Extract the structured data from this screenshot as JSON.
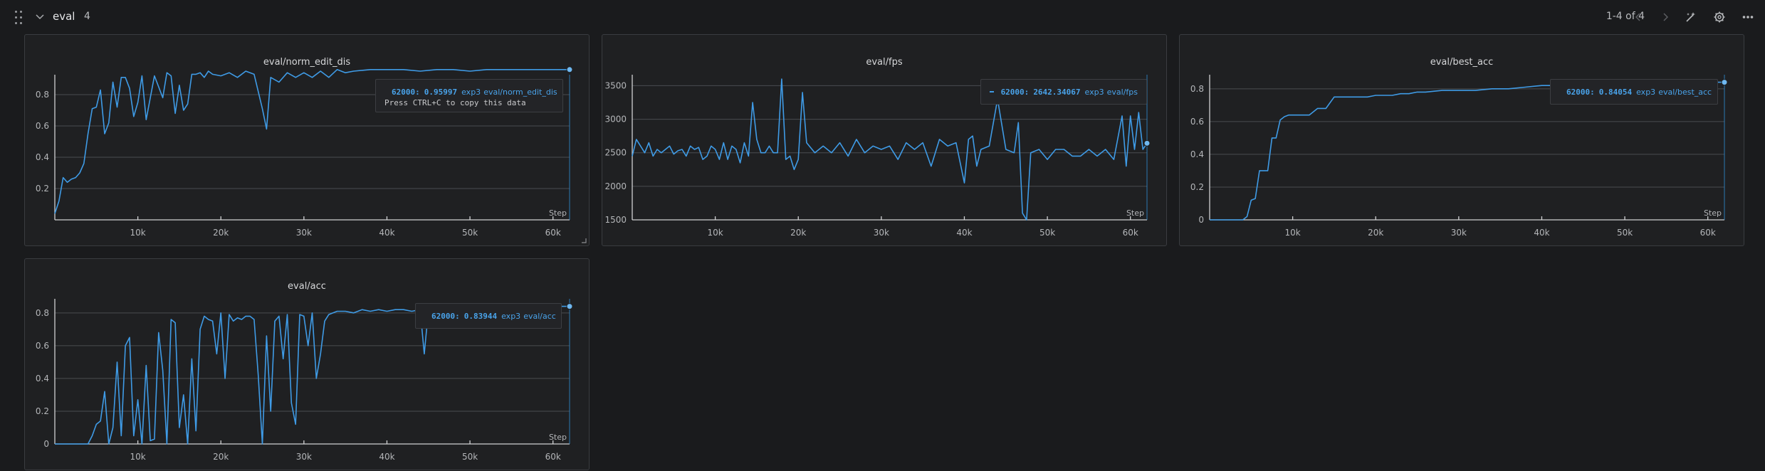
{
  "section": {
    "title": "eval",
    "count": "4",
    "pager": "1-4 of 4"
  },
  "icons": {
    "drag": "drag-handle-icon",
    "collapse": "chevron-down-icon",
    "prev": "chevron-left-icon",
    "next": "chevron-right-icon",
    "magic": "magic-wand-icon",
    "settings": "gear-icon",
    "more": "more-icon"
  },
  "colors": {
    "line": "#3f9be6",
    "legend_text": "#49a3ea",
    "background": "#1a1b1d",
    "panel": "#1f2022"
  },
  "panels": [
    {
      "title": "eval/norm_edit_dis",
      "legend": {
        "step": "62000:",
        "value": "0.95997",
        "run": "exp3",
        "metric": "eval/norm_edit_dis",
        "hint": "Press CTRL+C to copy this data"
      }
    },
    {
      "title": "eval/fps",
      "legend": {
        "step": "62000:",
        "value": "2642.34067",
        "run": "exp3",
        "metric": "eval/fps",
        "hint": ""
      }
    },
    {
      "title": "eval/best_acc",
      "legend": {
        "step": "62000:",
        "value": "0.84054",
        "run": "exp3",
        "metric": "eval/best_acc",
        "hint": ""
      }
    },
    {
      "title": "eval/acc",
      "legend": {
        "step": "62000:",
        "value": "0.83944",
        "run": "exp3",
        "metric": "eval/acc",
        "hint": ""
      }
    }
  ],
  "chart_data": [
    {
      "type": "line",
      "title": "eval/norm_edit_dis",
      "xlabel": "Step",
      "ylabel": "",
      "xlim": [
        0,
        62000
      ],
      "ylim": [
        0,
        0.9
      ],
      "xticks": [
        10000,
        20000,
        30000,
        40000,
        50000,
        60000
      ],
      "xtick_labels": [
        "10k",
        "20k",
        "30k",
        "40k",
        "50k",
        "60k"
      ],
      "yticks": [
        0.2,
        0.4,
        0.6,
        0.8
      ],
      "ytick_labels": [
        "0.2",
        "0.4",
        "0.6",
        "0.8"
      ],
      "grid": true,
      "series": [
        {
          "name": "exp3",
          "x": [
            0,
            500,
            1000,
            1500,
            2000,
            2500,
            3000,
            3500,
            4000,
            4500,
            5000,
            5500,
            6000,
            6500,
            7000,
            7500,
            8000,
            8500,
            9000,
            9500,
            10000,
            10500,
            11000,
            11500,
            12000,
            12500,
            13000,
            13500,
            14000,
            14500,
            15000,
            15500,
            16000,
            16500,
            17000,
            17500,
            18000,
            18500,
            19000,
            20000,
            21000,
            22000,
            23000,
            24000,
            25000,
            25500,
            26000,
            27000,
            28000,
            29000,
            30000,
            31000,
            32000,
            33000,
            34000,
            35000,
            36000,
            38000,
            40000,
            42000,
            44000,
            46000,
            48000,
            50000,
            52000,
            54000,
            56000,
            58000,
            60000,
            62000
          ],
          "y": [
            0.04,
            0.12,
            0.27,
            0.24,
            0.26,
            0.27,
            0.3,
            0.36,
            0.55,
            0.71,
            0.72,
            0.83,
            0.55,
            0.62,
            0.88,
            0.72,
            0.91,
            0.91,
            0.84,
            0.66,
            0.75,
            0.92,
            0.64,
            0.78,
            0.92,
            0.85,
            0.78,
            0.94,
            0.92,
            0.68,
            0.86,
            0.7,
            0.74,
            0.93,
            0.93,
            0.94,
            0.91,
            0.95,
            0.93,
            0.92,
            0.94,
            0.91,
            0.95,
            0.93,
            0.71,
            0.58,
            0.91,
            0.88,
            0.94,
            0.91,
            0.94,
            0.91,
            0.95,
            0.91,
            0.96,
            0.94,
            0.95,
            0.96,
            0.96,
            0.96,
            0.95,
            0.96,
            0.96,
            0.95,
            0.96,
            0.96,
            0.96,
            0.96,
            0.96,
            0.96
          ]
        }
      ]
    },
    {
      "type": "line",
      "title": "eval/fps",
      "xlabel": "Step",
      "ylabel": "",
      "xlim": [
        0,
        62000
      ],
      "ylim": [
        1500,
        3600
      ],
      "xticks": [
        10000,
        20000,
        30000,
        40000,
        50000,
        60000
      ],
      "xtick_labels": [
        "10k",
        "20k",
        "30k",
        "40k",
        "50k",
        "60k"
      ],
      "yticks": [
        1500,
        2000,
        2500,
        3000,
        3500
      ],
      "ytick_labels": [
        "1500",
        "2000",
        "2500",
        "3000",
        "3500"
      ],
      "grid": true,
      "series": [
        {
          "name": "exp3",
          "x": [
            0,
            500,
            1000,
            1500,
            2000,
            2500,
            3000,
            3500,
            4000,
            4500,
            5000,
            5500,
            6000,
            6500,
            7000,
            7500,
            8000,
            8500,
            9000,
            9500,
            10000,
            10500,
            11000,
            11500,
            12000,
            12500,
            13000,
            13500,
            14000,
            14500,
            15000,
            15500,
            16000,
            16500,
            17000,
            17500,
            18000,
            18500,
            19000,
            19500,
            20000,
            20500,
            21000,
            22000,
            23000,
            24000,
            25000,
            26000,
            27000,
            28000,
            29000,
            30000,
            31000,
            32000,
            33000,
            34000,
            35000,
            36000,
            37000,
            38000,
            39000,
            40000,
            40500,
            41000,
            41500,
            42000,
            43000,
            44000,
            45000,
            46000,
            46500,
            47000,
            47500,
            48000,
            49000,
            50000,
            51000,
            52000,
            53000,
            54000,
            55000,
            56000,
            57000,
            58000,
            59000,
            59500,
            60000,
            60500,
            61000,
            61500,
            62000
          ],
          "y": [
            2450,
            2700,
            2600,
            2500,
            2650,
            2450,
            2550,
            2500,
            2550,
            2600,
            2480,
            2530,
            2550,
            2450,
            2600,
            2550,
            2580,
            2400,
            2450,
            2600,
            2550,
            2400,
            2650,
            2400,
            2600,
            2550,
            2350,
            2650,
            2450,
            3250,
            2700,
            2500,
            2500,
            2600,
            2500,
            2500,
            3600,
            2400,
            2450,
            2250,
            2400,
            3400,
            2650,
            2500,
            2600,
            2500,
            2650,
            2450,
            2700,
            2500,
            2600,
            2550,
            2600,
            2400,
            2650,
            2550,
            2650,
            2300,
            2700,
            2600,
            2650,
            2050,
            2700,
            2750,
            2300,
            2550,
            2600,
            3300,
            2550,
            2500,
            2950,
            1600,
            1500,
            2500,
            2550,
            2400,
            2550,
            2550,
            2450,
            2450,
            2550,
            2450,
            2550,
            2400,
            3050,
            2300,
            3050,
            2550,
            3100,
            2550,
            2642
          ]
        }
      ]
    },
    {
      "type": "line",
      "title": "eval/best_acc",
      "xlabel": "Step",
      "ylabel": "",
      "xlim": [
        0,
        62000
      ],
      "ylim": [
        0,
        0.86
      ],
      "xticks": [
        10000,
        20000,
        30000,
        40000,
        50000,
        60000
      ],
      "xtick_labels": [
        "10k",
        "20k",
        "30k",
        "40k",
        "50k",
        "60k"
      ],
      "yticks": [
        0,
        0.2,
        0.4,
        0.6,
        0.8
      ],
      "ytick_labels": [
        "0",
        "0.2",
        "0.4",
        "0.6",
        "0.8"
      ],
      "grid": true,
      "series": [
        {
          "name": "exp3",
          "x": [
            0,
            4000,
            4500,
            5000,
            5500,
            6000,
            6500,
            7000,
            7500,
            8000,
            8500,
            9000,
            9500,
            10000,
            12000,
            13000,
            14000,
            15000,
            16000,
            17000,
            18000,
            19000,
            20000,
            21000,
            22000,
            23000,
            24000,
            25000,
            26000,
            28000,
            30000,
            32000,
            34000,
            36000,
            38000,
            40000,
            42000,
            44000,
            46000,
            48000,
            50000,
            52000,
            54000,
            56000,
            58000,
            60000,
            62000
          ],
          "y": [
            0,
            0,
            0.02,
            0.12,
            0.13,
            0.3,
            0.3,
            0.3,
            0.5,
            0.5,
            0.61,
            0.63,
            0.64,
            0.64,
            0.64,
            0.68,
            0.68,
            0.75,
            0.75,
            0.75,
            0.75,
            0.75,
            0.76,
            0.76,
            0.76,
            0.77,
            0.77,
            0.78,
            0.78,
            0.79,
            0.79,
            0.79,
            0.8,
            0.8,
            0.81,
            0.82,
            0.82,
            0.82,
            0.83,
            0.83,
            0.83,
            0.83,
            0.83,
            0.84,
            0.84,
            0.84,
            0.84
          ]
        }
      ]
    },
    {
      "type": "line",
      "title": "eval/acc",
      "xlabel": "Step",
      "ylabel": "",
      "xlim": [
        0,
        62000
      ],
      "ylim": [
        0,
        0.86
      ],
      "xticks": [
        10000,
        20000,
        30000,
        40000,
        50000,
        60000
      ],
      "xtick_labels": [
        "10k",
        "20k",
        "30k",
        "40k",
        "50k",
        "60k"
      ],
      "yticks": [
        0,
        0.2,
        0.4,
        0.6,
        0.8
      ],
      "ytick_labels": [
        "0",
        "0.2",
        "0.4",
        "0.6",
        "0.8"
      ],
      "grid": true,
      "series": [
        {
          "name": "exp3",
          "x": [
            0,
            4000,
            4500,
            5000,
            5500,
            6000,
            6500,
            7000,
            7500,
            8000,
            8500,
            9000,
            9500,
            10000,
            10500,
            11000,
            11500,
            12000,
            12500,
            13000,
            13500,
            14000,
            14500,
            15000,
            15500,
            16000,
            16500,
            17000,
            17500,
            18000,
            18500,
            19000,
            19500,
            20000,
            20500,
            21000,
            21500,
            22000,
            22500,
            23000,
            23500,
            24000,
            24500,
            25000,
            25500,
            26000,
            26500,
            27000,
            27500,
            28000,
            28500,
            29000,
            29500,
            30000,
            30500,
            31000,
            31500,
            32000,
            32500,
            33000,
            33500,
            34000,
            35000,
            36000,
            37000,
            38000,
            39000,
            40000,
            41000,
            42000,
            43000,
            44000,
            44500,
            45000,
            46000,
            48000,
            50000,
            52000,
            54000,
            56000,
            58000,
            60000,
            62000
          ],
          "y": [
            0,
            0,
            0.05,
            0.12,
            0.14,
            0.32,
            0.0,
            0.1,
            0.5,
            0.05,
            0.6,
            0.65,
            0.05,
            0.27,
            0.0,
            0.48,
            0.02,
            0.03,
            0.68,
            0.45,
            0.0,
            0.76,
            0.74,
            0.1,
            0.3,
            0.0,
            0.52,
            0.08,
            0.7,
            0.78,
            0.76,
            0.75,
            0.55,
            0.8,
            0.4,
            0.79,
            0.75,
            0.77,
            0.76,
            0.78,
            0.78,
            0.76,
            0.42,
            0.0,
            0.66,
            0.2,
            0.75,
            0.78,
            0.52,
            0.79,
            0.25,
            0.12,
            0.79,
            0.78,
            0.6,
            0.8,
            0.4,
            0.55,
            0.75,
            0.79,
            0.8,
            0.81,
            0.81,
            0.8,
            0.82,
            0.81,
            0.82,
            0.81,
            0.82,
            0.82,
            0.81,
            0.82,
            0.55,
            0.82,
            0.82,
            0.83,
            0.83,
            0.83,
            0.83,
            0.83,
            0.84,
            0.84,
            0.84
          ]
        }
      ]
    }
  ]
}
